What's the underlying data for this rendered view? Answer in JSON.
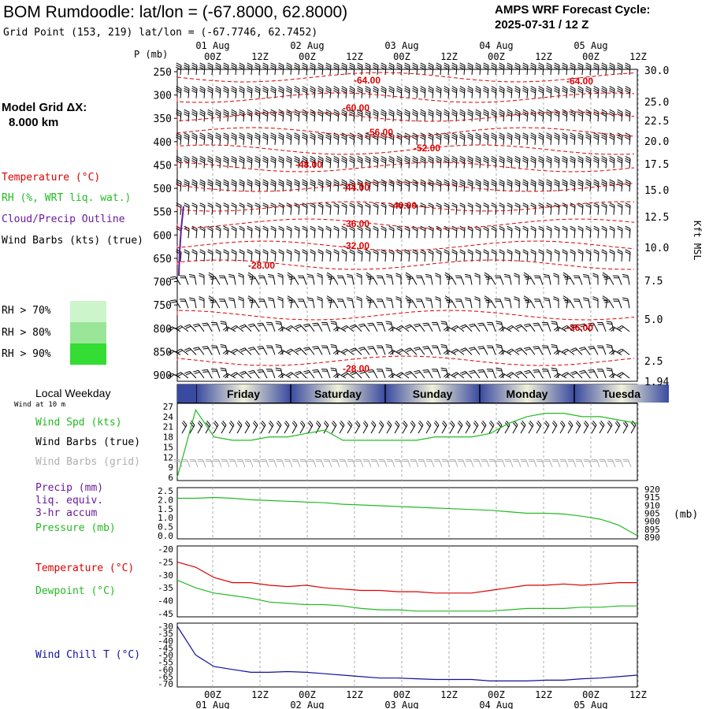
{
  "header": {
    "title": "BOM Rumdoodle:  lat/lon = (-67.8000, 62.8000)",
    "subtitle": "Grid Point (153, 219) lat/lon = (-67.7746, 62.7452)",
    "cycle_line1": "AMPS WRF Forecast Cycle:",
    "cycle_line2": "2025-07-31 / 12  Z"
  },
  "model_grid": {
    "label": "Model Grid ΔX:",
    "value": "8.000 km"
  },
  "legend": {
    "temperature": "Temperature (°C)",
    "rh": "RH (%, WRT liq. wat.)",
    "cloud": "Cloud/Precip Outline",
    "wind_barbs": "Wind Barbs (kts) (true)",
    "rh70": "RH > 70%",
    "rh80": "RH > 80%",
    "rh90": "RH > 90%",
    "local_weekday": "Local Weekday",
    "wind_at_10m": "Wind at 10 m",
    "wind_spd": "Wind Spd (kts)",
    "wind_barbs_true": "Wind Barbs (true)",
    "wind_barbs_grid": "Wind Barbs (grid)",
    "precip_1": "Precip (mm)",
    "precip_2": "liq. equiv.",
    "precip_3": "3-hr accum",
    "pressure": "Pressure (mb)",
    "temp2": "Temperature (°C)",
    "dewpoint": "Dewpoint (°C)",
    "windchill": "Wind Chill T (°C)",
    "p_axis": "P (mb)",
    "kft_axis": "Kft MSL",
    "mb_right": "(mb)"
  },
  "colors": {
    "temperature": "#dd0000",
    "rh": "#22bb22",
    "cloud": "#6a1b9a",
    "wind": "#000000",
    "wind_grid": "#b0b0b0",
    "windchill": "#1010a0",
    "rh70": "#ccf5cc",
    "rh80": "#99e699",
    "rh90": "#33dd33",
    "weekday_band_dark": "#3a4aa0",
    "weekday_band_light": "#f0f0d8"
  },
  "time_axis": {
    "top_dates": [
      "01 Aug",
      "02 Aug",
      "03 Aug",
      "04 Aug",
      "05 Aug"
    ],
    "ticks": [
      "00Z",
      "12Z",
      "00Z",
      "12Z",
      "00Z",
      "12Z",
      "00Z",
      "12Z",
      "00Z",
      "12Z"
    ],
    "bottom_dates": [
      "01 Aug",
      "02 Aug",
      "03 Aug",
      "04 Aug",
      "05 Aug"
    ]
  },
  "weekdays": [
    "Friday",
    "Saturday",
    "Sunday",
    "Monday",
    "Tuesda"
  ],
  "chart_data": [
    {
      "type": "line",
      "panel": "cross-section",
      "y_left_label": "P (mb)",
      "y_left_ticks": [
        "250",
        "300",
        "350",
        "400",
        "450",
        "500",
        "550",
        "600",
        "650",
        "700",
        "750",
        "800",
        "850",
        "900"
      ],
      "y_right_label": "Kft MSL",
      "y_right_ticks": [
        "30.0",
        "25.0",
        "22.5",
        "20.0",
        "17.5",
        "15.0",
        "12.5",
        "10.0",
        "7.5",
        "5.0",
        "2.5",
        "1.94"
      ],
      "temperature_contours": [
        "-64.00",
        "-64.00",
        "-60.00",
        "-56.00",
        "-52.00",
        "-48.00",
        "-44.00",
        "-40.00",
        "-36.00",
        "-32.00",
        "-28.00",
        "-36.00",
        "-28.00"
      ]
    },
    {
      "type": "line",
      "panel": "wind",
      "y_ticks": [
        "27",
        "24",
        "21",
        "18",
        "15",
        "12",
        "9",
        "6"
      ],
      "ylim": [
        6,
        27
      ],
      "series": [
        {
          "name": "Wind Spd (kts)",
          "values": [
            6,
            26,
            18,
            17,
            17,
            18,
            18,
            19,
            20,
            17,
            17,
            17,
            17,
            17,
            18,
            18,
            18,
            19,
            22,
            24,
            25,
            25,
            24,
            24,
            23,
            22
          ]
        }
      ]
    },
    {
      "type": "line",
      "panel": "precip-pressure",
      "y_ticks": [
        "2.5",
        "2.0",
        "1.5",
        "1.0",
        "0.5",
        "0.0"
      ],
      "y_right_ticks": [
        "920",
        "915",
        "910",
        "905",
        "900",
        "895",
        "890"
      ],
      "ylim": [
        0,
        2.5
      ],
      "y2lim": [
        890,
        920
      ],
      "series": [
        {
          "name": "Pressure (mb)",
          "values": [
            915,
            915,
            915.5,
            915,
            914,
            913.5,
            913,
            912.5,
            912,
            911,
            910.5,
            910,
            909.5,
            909,
            908.5,
            908,
            907.5,
            907,
            906,
            905,
            905,
            904.5,
            903,
            901,
            897,
            890
          ]
        }
      ]
    },
    {
      "type": "line",
      "panel": "temperature",
      "y_ticks": [
        "-20",
        "-25",
        "-30",
        "-35",
        "-40",
        "-45"
      ],
      "ylim": [
        -45,
        -20
      ],
      "series": [
        {
          "name": "Temperature (°C)",
          "values": [
            -25,
            -27,
            -31,
            -33,
            -33,
            -34,
            -34.5,
            -34,
            -35,
            -35.5,
            -36,
            -36,
            -36.5,
            -36.5,
            -37,
            -37,
            -37,
            -36,
            -35,
            -34,
            -34,
            -33.5,
            -34,
            -33.5,
            -33,
            -33
          ]
        },
        {
          "name": "Dewpoint (°C)",
          "values": [
            -32,
            -35,
            -37,
            -38,
            -39,
            -40.5,
            -41,
            -41.5,
            -41.5,
            -42,
            -43,
            -43.5,
            -43.5,
            -44,
            -44,
            -44,
            -44,
            -44,
            -43.5,
            -43,
            -43,
            -43,
            -42.5,
            -42.5,
            -42,
            -42
          ]
        }
      ]
    },
    {
      "type": "line",
      "panel": "windchill",
      "y_ticks": [
        "-30",
        "-35",
        "-40",
        "-45",
        "-50",
        "-55",
        "-60",
        "-65",
        "-70"
      ],
      "ylim": [
        -70,
        -30
      ],
      "series": [
        {
          "name": "Wind Chill T (°C)",
          "values": [
            -30,
            -50,
            -58,
            -60,
            -62,
            -62,
            -61.5,
            -62,
            -63,
            -64,
            -65,
            -66,
            -66,
            -66.5,
            -67,
            -67,
            -67,
            -68,
            -68,
            -68,
            -67.5,
            -67.5,
            -66.5,
            -66,
            -65,
            -64
          ]
        }
      ]
    }
  ]
}
